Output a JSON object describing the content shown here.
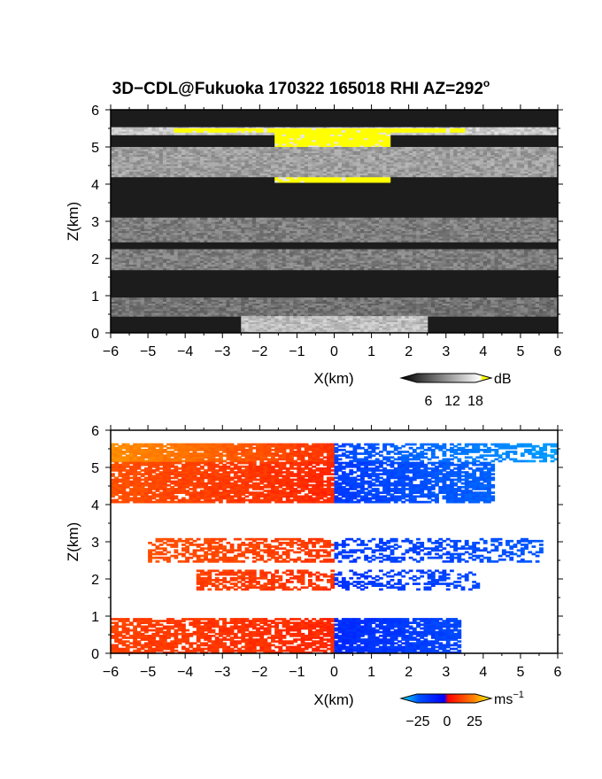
{
  "title": {
    "main": "3D−CDL@Fukuoka 170322 165018 RHI AZ=292",
    "superscript": "o"
  },
  "chart_data": [
    {
      "type": "heatmap",
      "panel": "reflectivity",
      "xlabel": "X(km)",
      "ylabel": "Z(km)",
      "xlim": [
        -6,
        6
      ],
      "ylim": [
        0,
        6
      ],
      "xticks": [
        "−6",
        "−5",
        "−4",
        "−3",
        "−2",
        "−1",
        "0",
        "1",
        "2",
        "3",
        "4",
        "5",
        "6"
      ],
      "yticks": [
        "0",
        "1",
        "2",
        "3",
        "4",
        "5",
        "6"
      ],
      "colorbar": {
        "unit": "dB",
        "ticks": [
          "6",
          "12",
          "18"
        ],
        "tick_values": [
          6,
          12,
          18
        ],
        "range": [
          0,
          20
        ],
        "colormap": "grayscale, yellow above 18 dB"
      },
      "layers": [
        {
          "zmin": 5.33,
          "zmax": 5.52,
          "xmin": -6.0,
          "xmax": 6.0,
          "level": 15
        },
        {
          "zmin": 5.4,
          "zmax": 5.48,
          "xmin": -4.3,
          "xmax": 3.5,
          "level": 20
        },
        {
          "zmin": 4.05,
          "zmax": 5.45,
          "xmin": -1.6,
          "xmax": 1.5,
          "level": 20
        },
        {
          "zmin": 4.2,
          "zmax": 5.0,
          "xmin": -6.0,
          "xmax": 6.0,
          "level": 11
        },
        {
          "zmin": 2.45,
          "zmax": 3.1,
          "xmin": -6.0,
          "xmax": 6.0,
          "level": 8
        },
        {
          "zmin": 1.7,
          "zmax": 2.25,
          "xmin": -6.0,
          "xmax": 6.0,
          "level": 8
        },
        {
          "zmin": 0.45,
          "zmax": 0.95,
          "xmin": -6.0,
          "xmax": 6.0,
          "level": 7
        },
        {
          "zmin": 0.0,
          "zmax": 0.45,
          "xmin": -2.5,
          "xmax": 2.5,
          "level": 14
        }
      ]
    },
    {
      "type": "heatmap",
      "panel": "doppler velocity",
      "xlabel": "X(km)",
      "ylabel": "Z(km)",
      "xlim": [
        -6,
        6
      ],
      "ylim": [
        0,
        6
      ],
      "xticks": [
        "−6",
        "−5",
        "−4",
        "−3",
        "−2",
        "−1",
        "0",
        "1",
        "2",
        "3",
        "4",
        "5",
        "6"
      ],
      "yticks": [
        "0",
        "1",
        "2",
        "3",
        "4",
        "5",
        "6"
      ],
      "colorbar": {
        "unit": "ms",
        "unit_superscript": "−1",
        "ticks": [
          "−25",
          "0",
          "25"
        ],
        "tick_values": [
          -25,
          0,
          25
        ],
        "range": [
          -32,
          32
        ],
        "colormap": "cyan-blue (negative) to red-orange-yellow (positive)"
      },
      "layers": [
        {
          "zmin": 5.15,
          "zmax": 5.65,
          "xmin": -6.0,
          "xmax": 0.0,
          "v_left": 18,
          "v_right": 6,
          "density": 0.9
        },
        {
          "zmin": 5.15,
          "zmax": 5.65,
          "xmin": 0.0,
          "xmax": 6.0,
          "v_left": -10,
          "v_right": -22,
          "density": 0.55
        },
        {
          "zmin": 4.05,
          "zmax": 5.15,
          "xmin": -6.0,
          "xmax": 0.0,
          "v_left": 10,
          "v_right": 5,
          "density": 0.85
        },
        {
          "zmin": 4.05,
          "zmax": 5.15,
          "xmin": 0.0,
          "xmax": 4.3,
          "v_left": -8,
          "v_right": -14,
          "density": 0.8
        },
        {
          "zmin": 2.45,
          "zmax": 3.1,
          "xmin": -5.0,
          "xmax": 0.0,
          "v_left": 10,
          "v_right": 7,
          "density": 0.55
        },
        {
          "zmin": 2.45,
          "zmax": 3.1,
          "xmin": 0.0,
          "xmax": 5.6,
          "v_left": -8,
          "v_right": -12,
          "density": 0.4
        },
        {
          "zmin": 1.7,
          "zmax": 2.25,
          "xmin": -3.7,
          "xmax": 0.0,
          "v_left": 8,
          "v_right": 6,
          "density": 0.6
        },
        {
          "zmin": 1.7,
          "zmax": 2.25,
          "xmin": 0.0,
          "xmax": 3.9,
          "v_left": -7,
          "v_right": -10,
          "density": 0.35
        },
        {
          "zmin": 0.0,
          "zmax": 0.95,
          "xmin": -6.0,
          "xmax": 0.0,
          "v_left": 8,
          "v_right": 5,
          "density": 0.75
        },
        {
          "zmin": 0.0,
          "zmax": 0.95,
          "xmin": 0.0,
          "xmax": 3.4,
          "v_left": -6,
          "v_right": -10,
          "density": 0.85
        }
      ]
    }
  ]
}
